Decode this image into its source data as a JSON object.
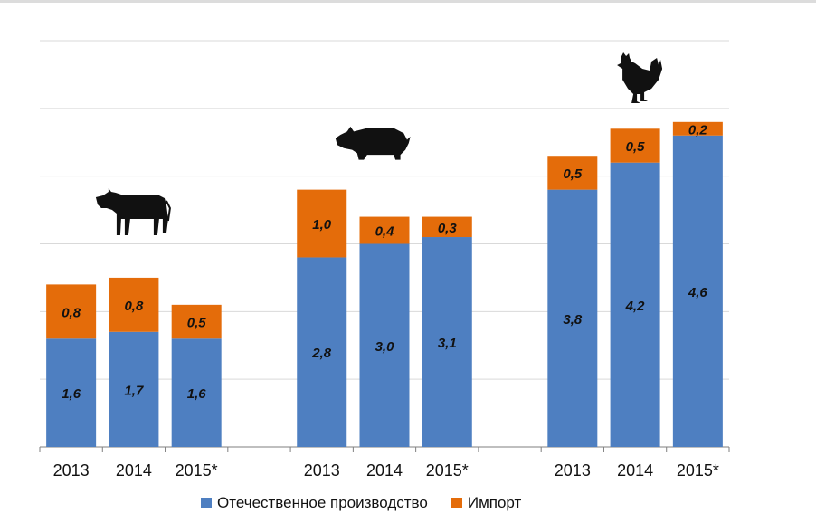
{
  "colors": {
    "domestic": "#4e7fc1",
    "import": "#e46c0a",
    "grid": "#d9d9d9",
    "axis": "#7f7f7f"
  },
  "legend": {
    "domestic_label": "Отечественное производство",
    "import_label": "Импорт"
  },
  "chart_data": {
    "type": "bar",
    "stacked": true,
    "groups": [
      {
        "icon": "cow-icon",
        "categories": [
          "2013",
          "2014",
          "2015*"
        ],
        "series": [
          {
            "name": "Отечественное производство",
            "values": [
              1.6,
              1.7,
              1.6
            ],
            "labels": [
              "1,6",
              "1,7",
              "1,6"
            ]
          },
          {
            "name": "Импорт",
            "values": [
              0.8,
              0.8,
              0.5
            ],
            "labels": [
              "0,8",
              "0,8",
              "0,5"
            ]
          }
        ]
      },
      {
        "icon": "pig-icon",
        "categories": [
          "2013",
          "2014",
          "2015*"
        ],
        "series": [
          {
            "name": "Отечественное производство",
            "values": [
              2.8,
              3.0,
              3.1
            ],
            "labels": [
              "2,8",
              "3,0",
              "3,1"
            ]
          },
          {
            "name": "Импорт",
            "values": [
              1.0,
              0.4,
              0.3
            ],
            "labels": [
              "1,0",
              "0,4",
              "0,3"
            ]
          }
        ]
      },
      {
        "icon": "chicken-icon",
        "categories": [
          "2013",
          "2014",
          "2015*"
        ],
        "series": [
          {
            "name": "Отечественное производство",
            "values": [
              3.8,
              4.2,
              4.6
            ],
            "labels": [
              "3,8",
              "4,2",
              "4,6"
            ]
          },
          {
            "name": "Импорт",
            "values": [
              0.5,
              0.5,
              0.2
            ],
            "labels": [
              "0,5",
              "0,5",
              "0,2"
            ]
          }
        ]
      }
    ],
    "ylim": [
      0,
      6
    ],
    "y_gridlines": [
      1,
      2,
      3,
      4,
      5,
      6
    ],
    "y_tick_labels_shown": false,
    "grid": true,
    "legend_position": "bottom"
  }
}
